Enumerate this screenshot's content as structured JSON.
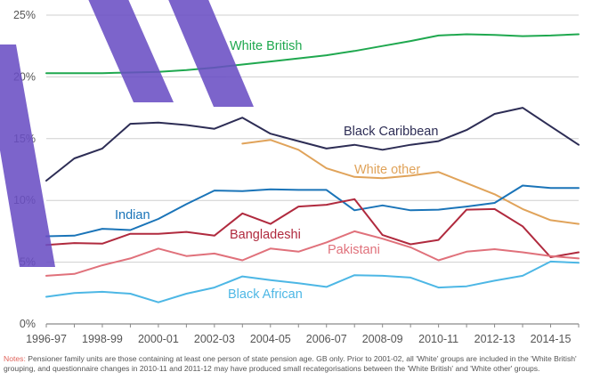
{
  "chart_data": {
    "type": "line",
    "x": [
      "1996-97",
      "1997-98",
      "1998-99",
      "1999-00",
      "2000-01",
      "2001-02",
      "2002-03",
      "2003-04",
      "2004-05",
      "2005-06",
      "2006-07",
      "2007-08",
      "2008-09",
      "2009-10",
      "2010-11",
      "2011-12",
      "2012-13",
      "2013-14",
      "2014-15",
      "2015-16"
    ],
    "xtick_labels": [
      "1996-97",
      "1998-99",
      "2000-01",
      "2002-03",
      "2004-05",
      "2006-07",
      "2008-09",
      "2010-11",
      "2012-13",
      "2014-15"
    ],
    "ytick_labels": [
      "0%",
      "5%",
      "10%",
      "15%",
      "20%",
      "25%"
    ],
    "ylim": [
      0,
      25
    ],
    "xlabel": "",
    "ylabel": "",
    "grid": true,
    "series": [
      {
        "name": "White British",
        "color": "#1fa84f",
        "values": [
          20.3,
          20.3,
          20.3,
          20.35,
          20.4,
          20.55,
          20.75,
          21.0,
          21.25,
          21.5,
          21.75,
          22.1,
          22.5,
          22.9,
          23.35,
          23.45,
          23.4,
          23.3,
          23.35,
          23.45
        ]
      },
      {
        "name": "Black Caribbean",
        "color": "#2d2d55",
        "values": [
          11.6,
          13.4,
          14.2,
          16.2,
          16.3,
          16.1,
          15.8,
          16.7,
          15.4,
          14.8,
          14.2,
          14.5,
          14.1,
          14.5,
          14.8,
          15.7,
          17.0,
          17.5,
          16.0,
          14.5
        ]
      },
      {
        "name": "White other",
        "color": "#e0a35a",
        "values": [
          null,
          null,
          null,
          null,
          null,
          null,
          null,
          14.6,
          14.9,
          14.1,
          12.6,
          11.9,
          11.8,
          12.0,
          12.3,
          11.4,
          10.5,
          9.3,
          8.4,
          8.1
        ]
      },
      {
        "name": "Indian",
        "color": "#1a74b8",
        "values": [
          7.1,
          7.15,
          7.7,
          7.6,
          8.5,
          9.7,
          10.8,
          10.75,
          10.9,
          10.85,
          10.85,
          9.2,
          9.6,
          9.2,
          9.25,
          9.5,
          9.8,
          11.2,
          11.0,
          11.0
        ]
      },
      {
        "name": "Bangladeshi",
        "color": "#b02a3e",
        "values": [
          6.4,
          6.55,
          6.5,
          7.3,
          7.3,
          7.45,
          7.15,
          8.95,
          8.1,
          9.5,
          9.65,
          10.1,
          7.2,
          6.45,
          6.8,
          9.25,
          9.3,
          7.9,
          5.4,
          5.8
        ]
      },
      {
        "name": "Pakistani",
        "color": "#e0717b",
        "values": [
          3.9,
          4.05,
          4.75,
          5.3,
          6.1,
          5.5,
          5.7,
          5.15,
          6.1,
          5.85,
          6.6,
          7.5,
          6.9,
          6.2,
          5.15,
          5.85,
          6.05,
          5.8,
          5.5,
          5.3
        ]
      },
      {
        "name": "Black African",
        "color": "#4db7e5",
        "values": [
          2.2,
          2.5,
          2.6,
          2.45,
          1.75,
          2.45,
          2.95,
          3.85,
          3.55,
          3.3,
          3.0,
          3.95,
          3.9,
          3.75,
          2.95,
          3.05,
          3.5,
          3.9,
          5.05,
          4.95
        ]
      }
    ],
    "annotations": [
      "White British",
      "Black Caribbean",
      "White other",
      "Indian",
      "Bangladeshi",
      "Pakistani",
      "Black African"
    ]
  },
  "watermark_text": "DRAFT",
  "notes": {
    "label": "Notes:",
    "text": " Pensioner family units are those containing at least one person of state pension age. GB only. Prior to 2001-02, all 'White' groups are included in the 'White British' grouping, and questionnaire changes in 2010-11 and 2011-12 may have produced small recategorisations between the 'White British' and 'White other' groups."
  }
}
